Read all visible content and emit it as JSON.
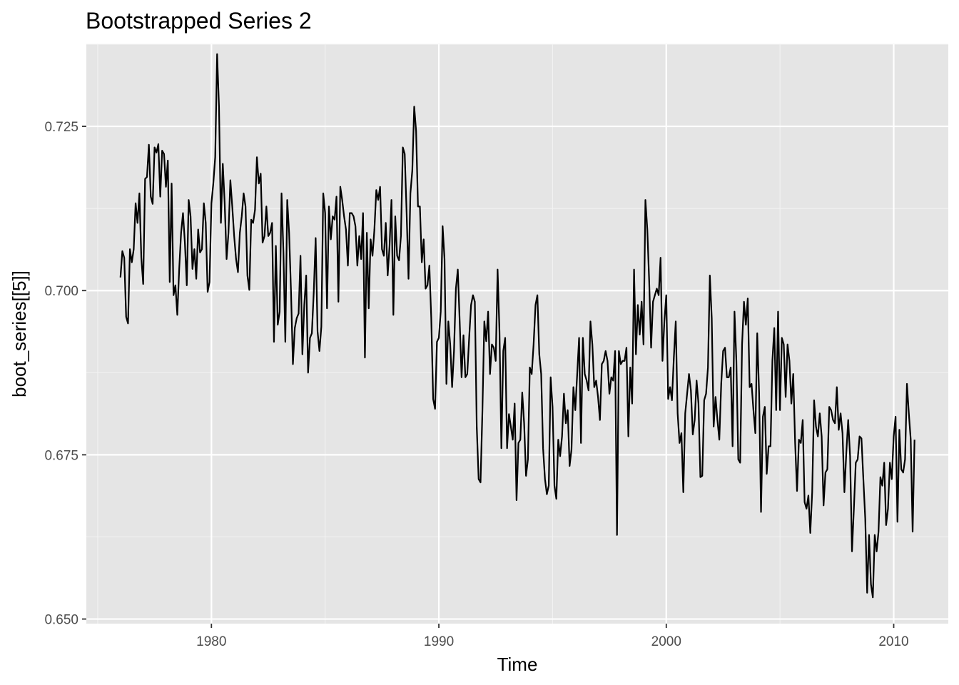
{
  "chart_data": {
    "type": "line",
    "title": "Bootstrapped Series 2",
    "xlabel": "Time",
    "ylabel": "boot_series[[5]]",
    "xlim": [
      1974.5,
      2012.4
    ],
    "ylim": [
      0.6493,
      0.7375
    ],
    "x_ticks": [
      1980,
      1990,
      2000,
      2010
    ],
    "x_tick_labels": [
      "1980",
      "1990",
      "2000",
      "2010"
    ],
    "y_ticks": [
      0.65,
      0.675,
      0.7,
      0.725
    ],
    "y_tick_labels": [
      "0.650",
      "0.675",
      "0.700",
      "0.725"
    ],
    "grid": true,
    "legend": "none",
    "x_start": 1976.0,
    "x_step": 0.08333,
    "series": [
      {
        "values": [
          0.702,
          0.706,
          0.705,
          0.696,
          0.695,
          0.7063,
          0.7043,
          0.7063,
          0.7133,
          0.7103,
          0.7148,
          0.705,
          0.701,
          0.717,
          0.7173,
          0.7222,
          0.7143,
          0.7132,
          0.7218,
          0.721,
          0.7223,
          0.7143,
          0.7213,
          0.7208,
          0.7158,
          0.7198,
          0.7013,
          0.7163,
          0.6993,
          0.7008,
          0.6963,
          0.7033,
          0.7088,
          0.7118,
          0.7073,
          0.7008,
          0.7138,
          0.7113,
          0.7033,
          0.7063,
          0.7018,
          0.7093,
          0.7058,
          0.7063,
          0.7133,
          0.7103,
          0.6998,
          0.7013,
          0.7133,
          0.7163,
          0.7203,
          0.736,
          0.728,
          0.7103,
          0.7193,
          0.7133,
          0.7048,
          0.7088,
          0.7168,
          0.7128,
          0.7083,
          0.7048,
          0.7028,
          0.7088,
          0.7113,
          0.7148,
          0.7128,
          0.7023,
          0.7001,
          0.7108,
          0.7103,
          0.7123,
          0.7203,
          0.7163,
          0.7178,
          0.7073,
          0.7083,
          0.7128,
          0.7083,
          0.7088,
          0.7103,
          0.6922,
          0.7068,
          0.6948,
          0.6968,
          0.7148,
          0.7058,
          0.6922,
          0.7138,
          0.7088,
          0.6998,
          0.6888,
          0.6943,
          0.6958,
          0.6965,
          0.7053,
          0.6903,
          0.6978,
          0.7023,
          0.6875,
          0.6928,
          0.6935,
          0.6998,
          0.708,
          0.6938,
          0.6908,
          0.6945,
          0.7148,
          0.7118,
          0.6973,
          0.7128,
          0.7078,
          0.7113,
          0.7108,
          0.7143,
          0.6983,
          0.7158,
          0.7138,
          0.7113,
          0.7093,
          0.7038,
          0.7118,
          0.7118,
          0.7113,
          0.7098,
          0.7038,
          0.7083,
          0.7048,
          0.7118,
          0.6898,
          0.7088,
          0.6973,
          0.7078,
          0.7053,
          0.7093,
          0.7153,
          0.7138,
          0.7158,
          0.7063,
          0.7053,
          0.7103,
          0.7023,
          0.7068,
          0.7138,
          0.6963,
          0.7113,
          0.7053,
          0.7046,
          0.7083,
          0.7218,
          0.7208,
          0.7118,
          0.7018,
          0.7148,
          0.7183,
          0.728,
          0.7243,
          0.7128,
          0.7128,
          0.7043,
          0.7078,
          0.7003,
          0.7008,
          0.7038,
          0.6958,
          0.6835,
          0.682,
          0.6922,
          0.6928,
          0.6968,
          0.7098,
          0.7048,
          0.6858,
          0.6953,
          0.6918,
          0.6853,
          0.6908,
          0.7003,
          0.7032,
          0.6953,
          0.6868,
          0.6932,
          0.6868,
          0.6873,
          0.6928,
          0.6978,
          0.6993,
          0.6983,
          0.6793,
          0.6713,
          0.6708,
          0.6818,
          0.6953,
          0.6923,
          0.6968,
          0.6873,
          0.6918,
          0.6913,
          0.6893,
          0.7032,
          0.6938,
          0.676,
          0.6908,
          0.6928,
          0.676,
          0.6812,
          0.6793,
          0.6773,
          0.6828,
          0.6681,
          0.6768,
          0.6773,
          0.6845,
          0.6798,
          0.6718,
          0.6743,
          0.6883,
          0.6873,
          0.6918,
          0.6978,
          0.6993,
          0.6903,
          0.6873,
          0.676,
          0.6713,
          0.669,
          0.6703,
          0.6868,
          0.6823,
          0.6703,
          0.6683,
          0.6773,
          0.6748,
          0.6778,
          0.6843,
          0.6798,
          0.6818,
          0.6733,
          0.6758,
          0.6853,
          0.6818,
          0.6873,
          0.6928,
          0.6768,
          0.6928,
          0.6873,
          0.6863,
          0.6848,
          0.6953,
          0.6918,
          0.6853,
          0.6863,
          0.6838,
          0.6803,
          0.6888,
          0.6893,
          0.6908,
          0.6893,
          0.6843,
          0.6868,
          0.6863,
          0.6908,
          0.6628,
          0.6908,
          0.6888,
          0.6893,
          0.6893,
          0.6913,
          0.6778,
          0.6883,
          0.6828,
          0.7032,
          0.6903,
          0.6978,
          0.6933,
          0.6983,
          0.6918,
          0.7138,
          0.7093,
          0.7013,
          0.6913,
          0.6983,
          0.6993,
          0.7003,
          0.6993,
          0.705,
          0.6893,
          0.6953,
          0.6993,
          0.6835,
          0.6853,
          0.6833,
          0.6898,
          0.6953,
          0.6813,
          0.6768,
          0.6783,
          0.6693,
          0.6813,
          0.6843,
          0.6873,
          0.6848,
          0.6781,
          0.6803,
          0.6863,
          0.6828,
          0.6716,
          0.6718,
          0.6833,
          0.6843,
          0.6883,
          0.7023,
          0.6958,
          0.6793,
          0.6838,
          0.6803,
          0.6773,
          0.6858,
          0.6908,
          0.6913,
          0.6868,
          0.6868,
          0.6883,
          0.6763,
          0.6968,
          0.6893,
          0.6743,
          0.6738,
          0.6918,
          0.6983,
          0.6948,
          0.6988,
          0.6853,
          0.6858,
          0.6818,
          0.6783,
          0.6935,
          0.6843,
          0.6663,
          0.6808,
          0.6823,
          0.6721,
          0.6763,
          0.6763,
          0.6893,
          0.6943,
          0.6818,
          0.6968,
          0.6818,
          0.6928,
          0.6918,
          0.6838,
          0.6918,
          0.6893,
          0.6828,
          0.6873,
          0.6768,
          0.6695,
          0.6773,
          0.6768,
          0.6803,
          0.6678,
          0.6668,
          0.6688,
          0.6631,
          0.6693,
          0.6833,
          0.6793,
          0.6778,
          0.6813,
          0.6778,
          0.6673,
          0.6723,
          0.6728,
          0.6823,
          0.6818,
          0.6803,
          0.6798,
          0.6853,
          0.6788,
          0.6813,
          0.6783,
          0.6693,
          0.6753,
          0.6803,
          0.6748,
          0.6603,
          0.6668,
          0.6738,
          0.6743,
          0.6778,
          0.6775,
          0.6713,
          0.6653,
          0.654,
          0.6628,
          0.6553,
          0.6533,
          0.6628,
          0.6603,
          0.6633,
          0.6716,
          0.6703,
          0.6738,
          0.6643,
          0.6668,
          0.6738,
          0.6713,
          0.6778,
          0.6808,
          0.6648,
          0.6788,
          0.6728,
          0.6723,
          0.6743,
          0.6858,
          0.6813,
          0.6773,
          0.6633,
          0.6773
        ]
      }
    ]
  }
}
